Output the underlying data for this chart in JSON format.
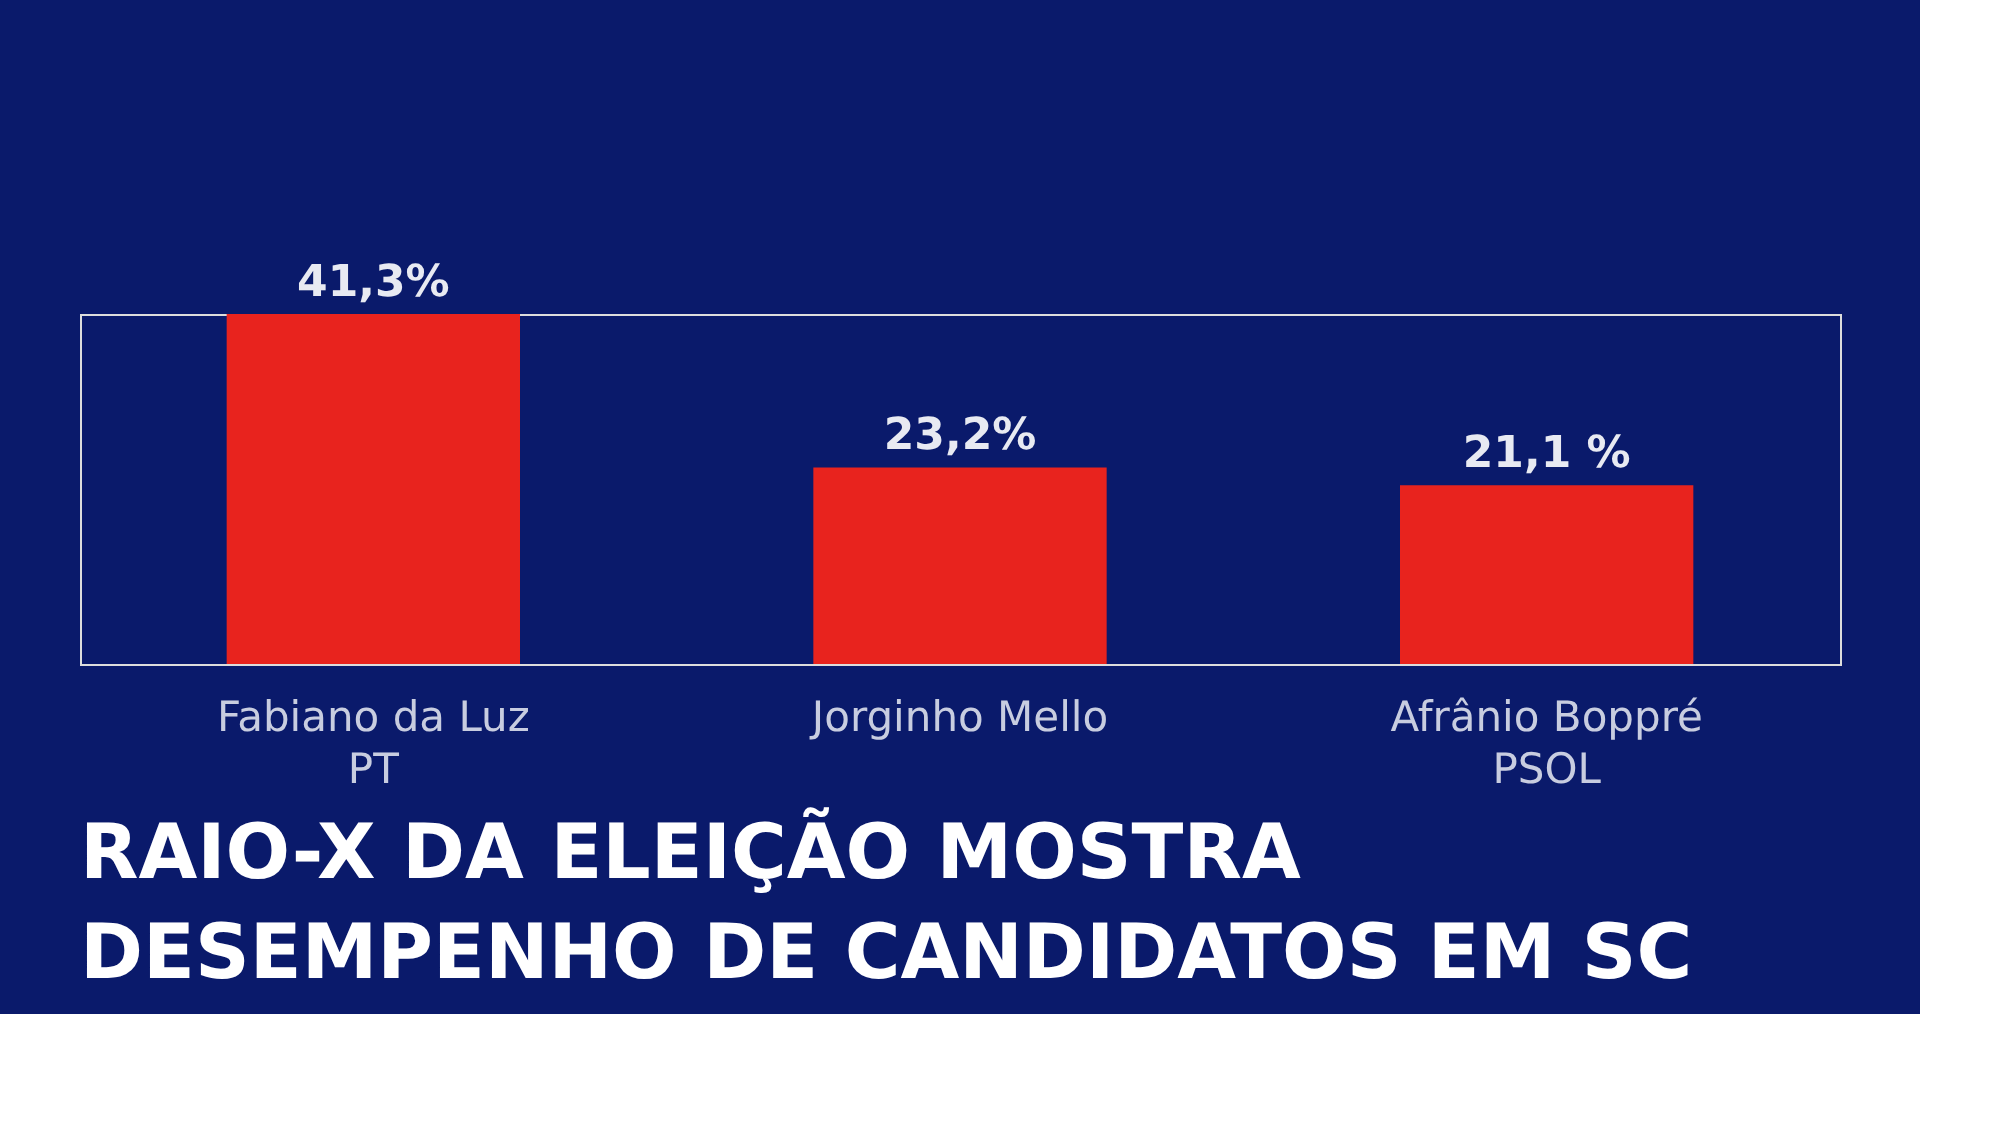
{
  "chart_data": {
    "type": "bar",
    "title": "RAIO-X DA ELEIÇÃO MOSTRA\nDESEMPENHO DE CANDIDATOS EM SC",
    "categories": [
      "Fabiano da Luz\nPT",
      "Jorginho Mello",
      "Afrânio Boppré\nPSOL"
    ],
    "values": [
      41.3,
      23.2,
      21.1
    ],
    "value_labels": [
      "41,3%",
      "23,2%",
      "21,1 %"
    ],
    "color": "#e8231e"
  }
}
